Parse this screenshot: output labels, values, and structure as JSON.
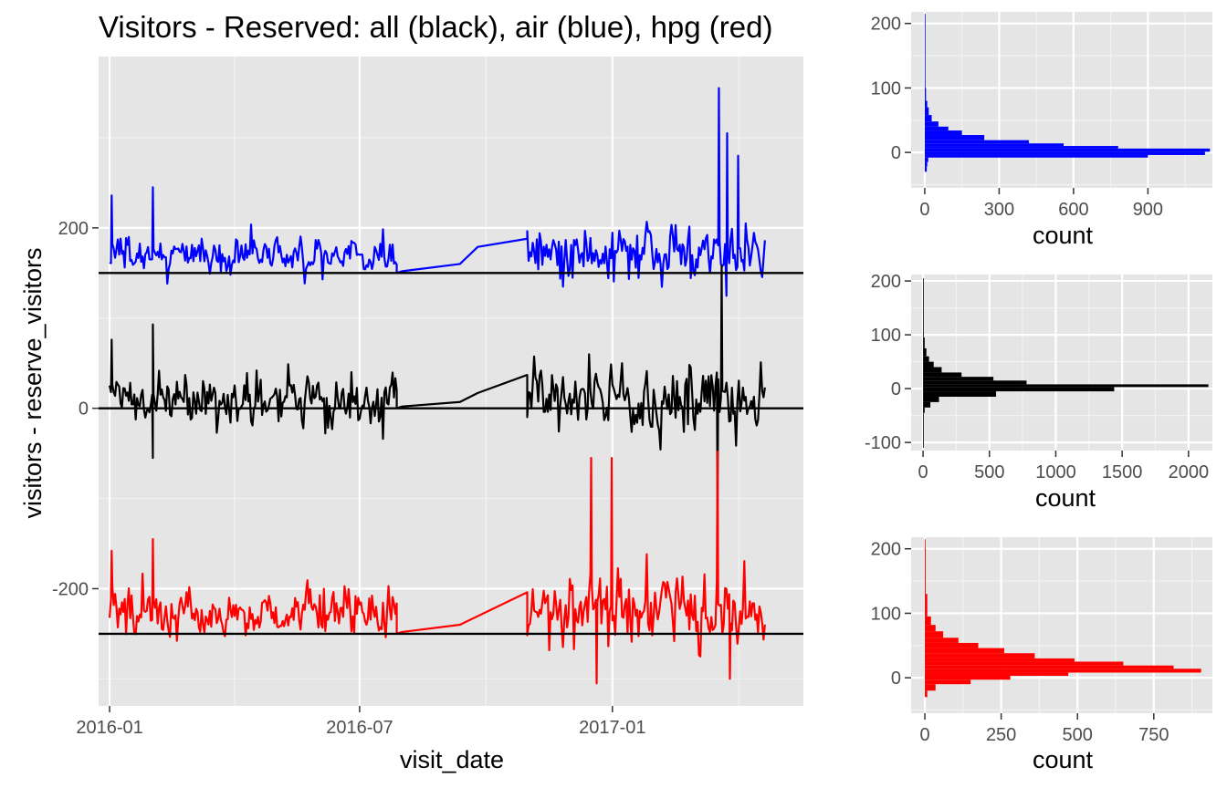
{
  "colors": {
    "panel_bg": "#e5e5e5",
    "grid_major": "#ffffff",
    "grid_minor": "#f2f2f2",
    "all": "#000000",
    "air": "#0000ff",
    "hpg": "#ff0000",
    "tick_text": "#4d4d4d"
  },
  "chart_data": [
    {
      "id": "main",
      "type": "line",
      "title": "Visitors - Reserved: all (black), air (blue), hpg (red)",
      "xlabel": "visit_date",
      "ylabel": "visitors - reserve_visitors",
      "xticks": [
        "2016-01",
        "2016-07",
        "2017-01"
      ],
      "xlim": [
        "2015-12-24",
        "2017-05-20"
      ],
      "ylim": [
        -330,
        390
      ],
      "yticks": [
        200,
        0,
        -200
      ],
      "grid": true,
      "reference_lines": [
        {
          "y": 150,
          "color": "#000000"
        },
        {
          "y": 0,
          "color": "#000000"
        },
        {
          "y": -250,
          "color": "#000000"
        }
      ],
      "series": [
        {
          "key": "air",
          "color": "#0000ff",
          "baseline": 150,
          "segments": [
            {
              "start": "2016-01-01",
              "end": "2016-07-28",
              "mean": 169,
              "sd": 13,
              "min": 118,
              "max": 245
            },
            {
              "points": [
                [
                  "2016-07-28",
                  150
                ],
                [
                  "2016-08-01",
                  152
                ],
                [
                  "2016-09-12",
                  160
                ],
                [
                  "2016-09-25",
                  179
                ],
                [
                  "2016-10-31",
                  188
                ]
              ]
            },
            {
              "start": "2016-10-31",
              "end": "2017-04-22",
              "mean": 171,
              "sd": 19,
              "min": 100,
              "max": 355
            }
          ],
          "spikes": [
            [
              "2016-01-02",
              236
            ],
            [
              "2016-02-01",
              245
            ],
            [
              "2017-03-19",
              355
            ],
            [
              "2017-03-25",
              305
            ],
            [
              "2017-04-02",
              280
            ]
          ]
        },
        {
          "key": "all",
          "color": "#000000",
          "baseline": 0,
          "segments": [
            {
              "start": "2016-01-01",
              "end": "2016-07-28",
              "mean": 8,
              "sd": 17,
              "min": -55,
              "max": 93
            },
            {
              "points": [
                [
                  "2016-07-28",
                  0
                ],
                [
                  "2016-08-01",
                  2
                ],
                [
                  "2016-09-12",
                  7
                ],
                [
                  "2016-09-25",
                  17
                ],
                [
                  "2016-10-31",
                  37
                ]
              ]
            },
            {
              "start": "2016-10-31",
              "end": "2017-04-22",
              "mean": 10,
              "sd": 24,
              "min": -105,
              "max": 158
            }
          ],
          "spikes": [
            [
              "2016-01-02",
              76
            ],
            [
              "2016-02-01",
              93
            ],
            [
              "2016-02-01",
              -55
            ],
            [
              "2017-03-21",
              158
            ],
            [
              "2017-03-18",
              -105
            ]
          ]
        },
        {
          "key": "hpg",
          "color": "#ff0000",
          "baseline": -250,
          "segments": [
            {
              "start": "2016-01-01",
              "end": "2016-07-28",
              "mean": -228,
              "sd": 16,
              "min": -270,
              "max": -145
            },
            {
              "points": [
                [
                  "2016-07-28",
                  -250
                ],
                [
                  "2016-08-01",
                  -248
                ],
                [
                  "2016-09-12",
                  -240
                ],
                [
                  "2016-10-31",
                  -204
                ]
              ]
            },
            {
              "start": "2016-10-31",
              "end": "2017-04-22",
              "mean": -226,
              "sd": 22,
              "min": -305,
              "max": -50
            }
          ],
          "spikes": [
            [
              "2016-01-02",
              -158
            ],
            [
              "2016-02-01",
              -145
            ],
            [
              "2016-12-16",
              -55
            ],
            [
              "2016-12-31",
              -55
            ],
            [
              "2017-03-18",
              -48
            ],
            [
              "2016-12-20",
              -305
            ],
            [
              "2017-03-27",
              -300
            ]
          ]
        }
      ]
    },
    {
      "id": "hist_air",
      "type": "bar",
      "orientation": "horizontal",
      "color": "#0000ff",
      "xlabel": "count",
      "xticks": [
        0,
        300,
        600,
        900
      ],
      "xlim": [
        -55,
        1160
      ],
      "yticks": [
        200,
        100,
        0
      ],
      "ylim": [
        -55,
        218
      ],
      "bins": [
        [
          -30,
          -22,
          8
        ],
        [
          -22,
          -15,
          10
        ],
        [
          -15,
          -8,
          14
        ],
        [
          -8,
          -4,
          900
        ],
        [
          -4,
          1,
          1130
        ],
        [
          1,
          6,
          1150
        ],
        [
          6,
          10,
          780
        ],
        [
          10,
          14,
          560
        ],
        [
          14,
          19,
          420
        ],
        [
          19,
          27,
          240
        ],
        [
          27,
          34,
          150
        ],
        [
          34,
          40,
          95
        ],
        [
          40,
          48,
          55
        ],
        [
          48,
          58,
          28
        ],
        [
          58,
          70,
          16
        ],
        [
          70,
          80,
          10
        ],
        [
          80,
          100,
          5
        ],
        [
          100,
          140,
          3
        ],
        [
          140,
          200,
          2
        ],
        [
          200,
          215,
          1
        ]
      ]
    },
    {
      "id": "hist_all",
      "type": "bar",
      "orientation": "horizontal",
      "color": "#000000",
      "xlabel": "count",
      "xticks": [
        0,
        500,
        1000,
        1500,
        2000
      ],
      "xlim": [
        -90,
        2180
      ],
      "yticks": [
        200,
        100,
        0,
        -100
      ],
      "ylim": [
        -115,
        212
      ],
      "bins": [
        [
          -45,
          -35,
          12
        ],
        [
          -35,
          -25,
          55
        ],
        [
          -25,
          -15,
          120
        ],
        [
          -15,
          -5,
          550
        ],
        [
          -5,
          3,
          1440
        ],
        [
          3,
          8,
          2150
        ],
        [
          8,
          15,
          780
        ],
        [
          15,
          22,
          530
        ],
        [
          22,
          30,
          290
        ],
        [
          30,
          40,
          140
        ],
        [
          40,
          50,
          80
        ],
        [
          50,
          60,
          45
        ],
        [
          60,
          75,
          25
        ],
        [
          75,
          95,
          12
        ],
        [
          95,
          150,
          5
        ],
        [
          150,
          205,
          2
        ],
        [
          -110,
          -45,
          3
        ]
      ]
    },
    {
      "id": "hist_hpg",
      "type": "bar",
      "orientation": "horizontal",
      "color": "#ff0000",
      "xlabel": "count",
      "xticks": [
        0,
        250,
        500,
        750
      ],
      "xlim": [
        -45,
        942
      ],
      "yticks": [
        200,
        100,
        0
      ],
      "ylim": [
        -55,
        218
      ],
      "bins": [
        [
          -30,
          -20,
          8
        ],
        [
          -20,
          -10,
          35
        ],
        [
          -10,
          -3,
          150
        ],
        [
          -3,
          3,
          280
        ],
        [
          3,
          8,
          470
        ],
        [
          8,
          14,
          905
        ],
        [
          14,
          19,
          815
        ],
        [
          19,
          25,
          650
        ],
        [
          25,
          30,
          490
        ],
        [
          30,
          38,
          360
        ],
        [
          38,
          46,
          260
        ],
        [
          46,
          54,
          175
        ],
        [
          54,
          62,
          110
        ],
        [
          62,
          72,
          60
        ],
        [
          72,
          82,
          35
        ],
        [
          82,
          95,
          20
        ],
        [
          95,
          130,
          8
        ],
        [
          130,
          200,
          3
        ],
        [
          200,
          215,
          1
        ]
      ]
    }
  ]
}
